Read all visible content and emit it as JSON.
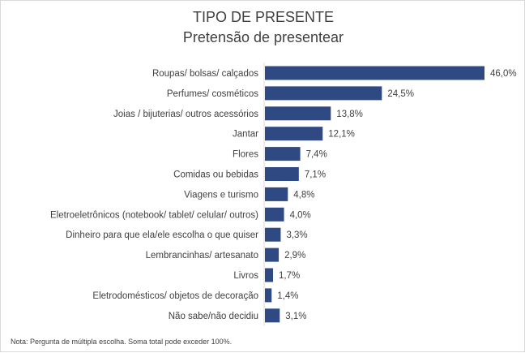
{
  "chart_data": {
    "type": "bar",
    "orientation": "horizontal",
    "title": "TIPO DE PRESENTE",
    "subtitle": "Pretensão de presentear",
    "categories": [
      "Roupas/ bolsas/ calçados",
      "Perfumes/ cosméticos",
      "Joias / bijuterias/ outros acessórios",
      "Jantar",
      "Flores",
      "Comidas ou bebidas",
      "Viagens e turismo",
      "Eletroeletrônicos (notebook/ tablet/ celular/ outros)",
      "Dinheiro para que ela/ele escolha o que quiser",
      "Lembrancinhas/ artesanato",
      "Livros",
      "Eletrodomésticos/ objetos de decoração",
      "Não sabe/não decidiu"
    ],
    "values": [
      46.0,
      24.5,
      13.8,
      12.1,
      7.4,
      7.1,
      4.8,
      4.0,
      3.3,
      2.9,
      1.7,
      1.4,
      3.1
    ],
    "data_labels": [
      "46,0%",
      "24,5%",
      "13,8%",
      "12,1%",
      "7,4%",
      "7,1%",
      "4,8%",
      "4,0%",
      "3,3%",
      "2,9%",
      "1,7%",
      "1,4%",
      "3,1%"
    ],
    "xlim": [
      0,
      46
    ],
    "grid": false,
    "legend": "none",
    "bar_color": "#2f4a82",
    "note": "Nota: Pergunta de múltipla escolha. Soma total pode exceder 100%."
  }
}
